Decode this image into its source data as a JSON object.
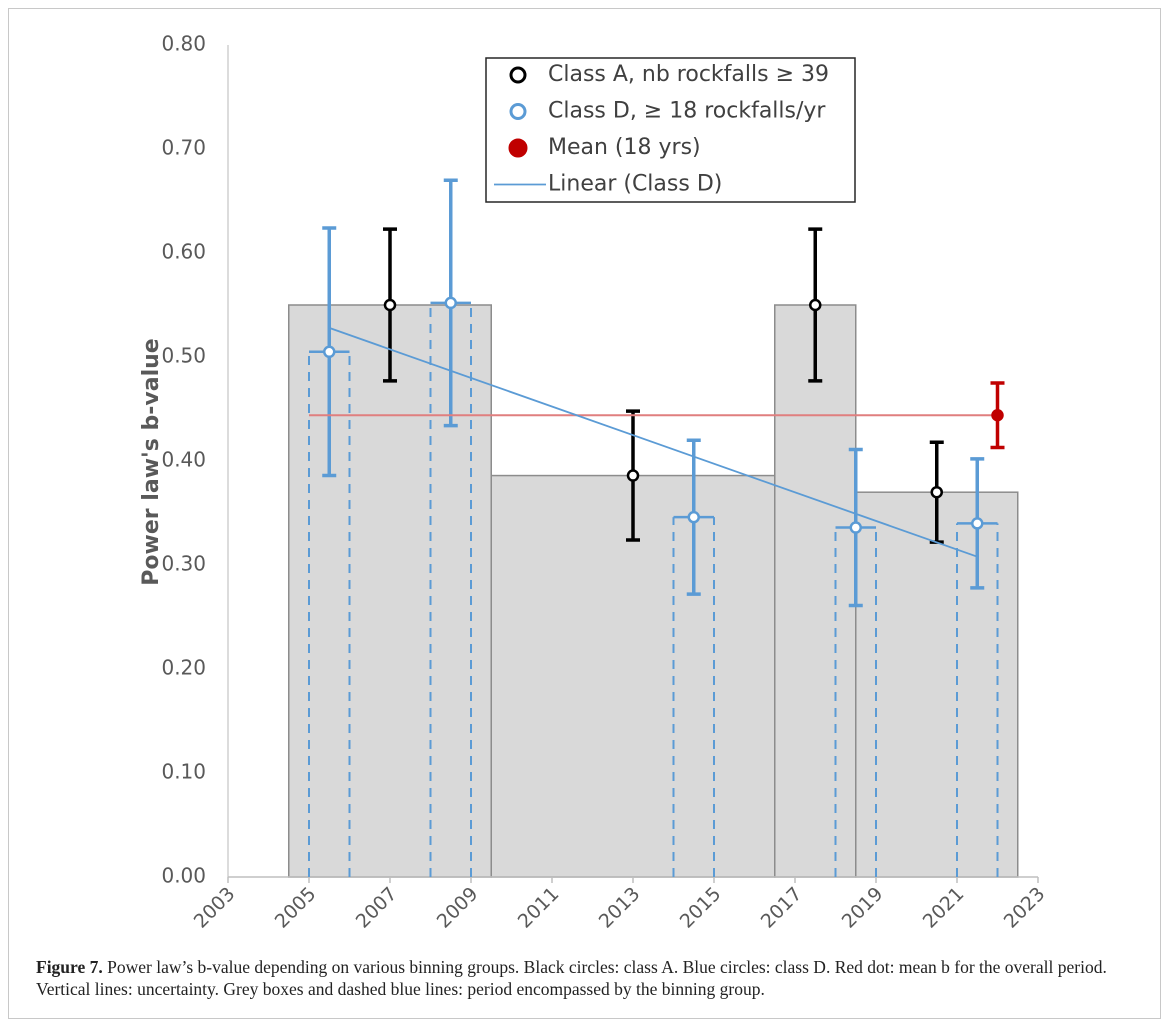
{
  "chart_data": {
    "type": "scatter",
    "ylabel": "Power law's b-value",
    "xlim": [
      2003,
      2023
    ],
    "xticks": [
      2003,
      2005,
      2007,
      2009,
      2011,
      2013,
      2015,
      2017,
      2019,
      2021,
      2023
    ],
    "ylim": [
      0,
      0.8
    ],
    "yticks": [
      {
        "value": 0,
        "label": "0.00"
      },
      {
        "value": 0.1,
        "label": "0.10"
      },
      {
        "value": 0.2,
        "label": "0.20"
      },
      {
        "value": 0.3,
        "label": "0.30"
      },
      {
        "value": 0.4,
        "label": "0.40"
      },
      {
        "value": 0.5,
        "label": "0.50"
      },
      {
        "value": 0.6,
        "label": "0.60"
      },
      {
        "value": 0.7,
        "label": "0.70"
      },
      {
        "value": 0.8,
        "label": "0.80"
      }
    ],
    "boxes": {
      "color": "#d9d9d9",
      "x": [
        [
          2004.5,
          2009.5
        ],
        [
          2009.5,
          2016.5
        ],
        [
          2016.5,
          2018.5
        ],
        [
          2018.5,
          2022.5
        ]
      ],
      "values": [
        0.55,
        0.386,
        0.55,
        0.37
      ]
    },
    "series": [
      {
        "name": "Class A, nb rockfalls ≥ 39",
        "color": "#000000",
        "marker": "hollow",
        "x": [
          2007,
          2013,
          2017.5,
          2020.5
        ],
        "values": [
          0.55,
          0.386,
          0.55,
          0.37
        ],
        "errors": [
          0.073,
          0.062,
          0.073,
          0.048
        ]
      },
      {
        "name": "Class D, ≥ 18 rockfalls/yr",
        "color": "#5b9bd5",
        "marker": "hollow",
        "x": [
          2005.5,
          2008.5,
          2014.5,
          2018.5,
          2021.5
        ],
        "values": [
          0.505,
          0.552,
          0.346,
          0.336,
          0.34
        ],
        "errors": [
          0.119,
          0.118,
          0.074,
          0.075,
          0.062
        ],
        "periods": [
          [
            2005,
            2006
          ],
          [
            2008,
            2009
          ],
          [
            2014,
            2015
          ],
          [
            2018,
            2019
          ],
          [
            2021,
            2022
          ]
        ]
      },
      {
        "name": "Mean (18 yrs)",
        "color": "#c00000",
        "marker": "filled",
        "x": [
          2022
        ],
        "values": [
          0.444
        ],
        "errors": [
          0.031
        ],
        "line_from": 2005
      },
      {
        "name": "Linear (Class D)",
        "color": "#5b9bd5",
        "marker": "line",
        "x": [
          2005.5,
          2021.5
        ],
        "values": [
          0.528,
          0.308
        ]
      }
    ]
  },
  "caption": {
    "label": "Figure 7.",
    "text": "Power law’s b-value depending on various binning groups. Black circles: class A. Blue circles: class D. Red dot: mean b for the overall period. Vertical lines: uncertainty. Grey boxes and dashed blue lines: period encompassed by the binning group."
  }
}
